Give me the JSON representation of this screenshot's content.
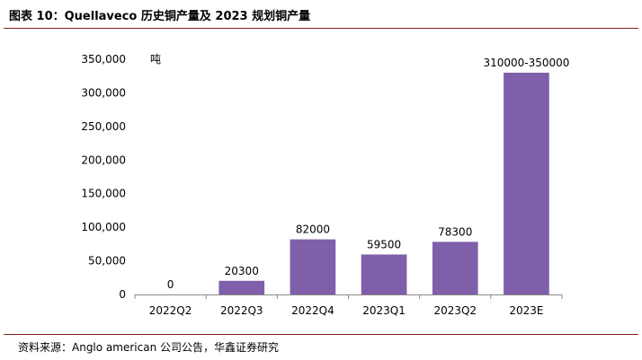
{
  "header": {
    "title": "图表 10：Quellaveco 历史铜产量及 2023 规划铜产量"
  },
  "footer": {
    "source": "资料来源：Anglo american 公司公告，华鑫证券研究"
  },
  "chart_data": {
    "type": "bar",
    "title": "",
    "xlabel": "",
    "ylabel": "",
    "unit_label": "吨",
    "categories": [
      "2022Q2",
      "2022Q3",
      "2022Q4",
      "2023Q1",
      "2023Q2",
      "2023E"
    ],
    "values": [
      0,
      20300,
      82000,
      59500,
      78300,
      330000
    ],
    "data_labels": [
      "0",
      "20300",
      "82000",
      "59500",
      "78300",
      "310000-350000"
    ],
    "y_ticks": [
      "0",
      "50,000",
      "100,000",
      "150,000",
      "200,000",
      "250,000",
      "300,000",
      "350,000"
    ],
    "y_tick_values": [
      0,
      50000,
      100000,
      150000,
      200000,
      250000,
      300000,
      350000
    ],
    "ylim": [
      0,
      350000
    ],
    "bar_color": "#7f5fa9",
    "grid": false,
    "legend": "none"
  }
}
